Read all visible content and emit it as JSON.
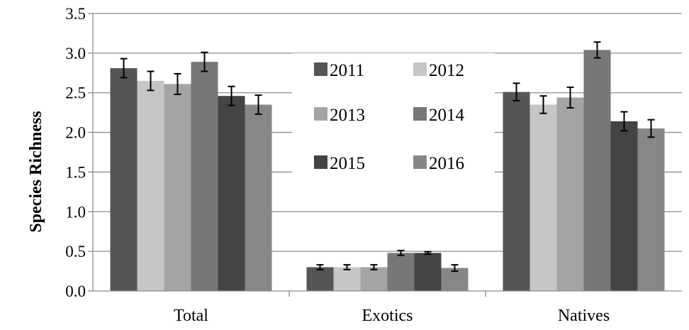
{
  "chart_data": {
    "type": "bar",
    "title": "",
    "xlabel": "",
    "ylabel": "Species Richness",
    "ylim": [
      0,
      3.5
    ],
    "yticks": [
      "0.0",
      "0.5",
      "1.0",
      "1.5",
      "2.0",
      "2.5",
      "3.0",
      "3.5"
    ],
    "grid": true,
    "legend_position": "center",
    "categories": [
      "Total",
      "Exotics",
      "Natives"
    ],
    "series": [
      {
        "name": "2011",
        "color": "#555555",
        "values": [
          2.81,
          0.3,
          2.51
        ],
        "errors": [
          0.12,
          0.03,
          0.11
        ]
      },
      {
        "name": "2012",
        "color": "#c6c6c6",
        "values": [
          2.65,
          0.3,
          2.35
        ],
        "errors": [
          0.12,
          0.03,
          0.11
        ]
      },
      {
        "name": "2013",
        "color": "#a4a4a4",
        "values": [
          2.61,
          0.3,
          2.44
        ],
        "errors": [
          0.13,
          0.03,
          0.13
        ]
      },
      {
        "name": "2014",
        "color": "#777777",
        "values": [
          2.89,
          0.48,
          3.04
        ],
        "errors": [
          0.12,
          0.03,
          0.1
        ]
      },
      {
        "name": "2015",
        "color": "#444444",
        "values": [
          2.46,
          0.48,
          2.14
        ],
        "errors": [
          0.12,
          0.015,
          0.12
        ]
      },
      {
        "name": "2016",
        "color": "#878787",
        "values": [
          2.35,
          0.29,
          2.05
        ],
        "errors": [
          0.12,
          0.04,
          0.11
        ]
      }
    ]
  }
}
